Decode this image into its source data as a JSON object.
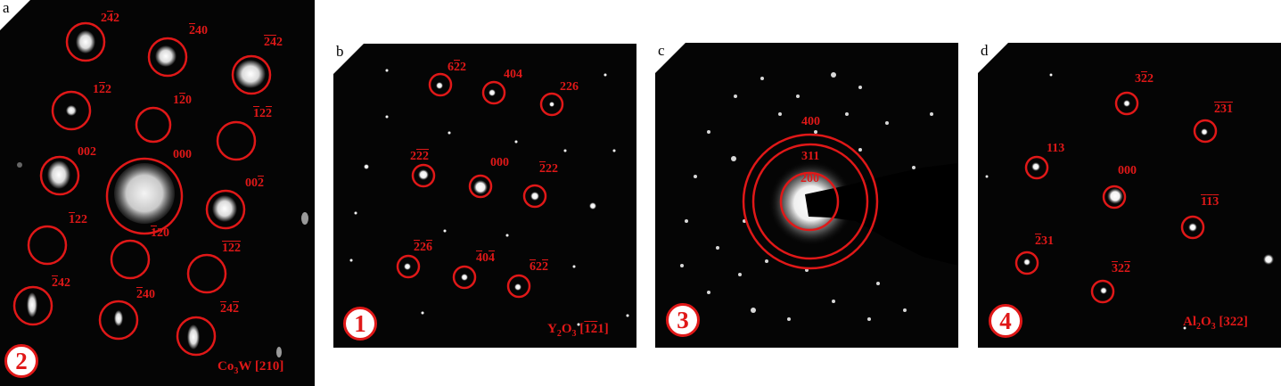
{
  "colors": {
    "marker": "#e01818",
    "background": "#050505",
    "badge_fill": "#ffffff"
  },
  "panels": {
    "a": {
      "letter": "a",
      "badge": "2",
      "caption_html": "Co<sub>3</sub>W [210]",
      "labels": [
        {
          "html": "2<span class=\"over\">4</span>2"
        },
        {
          "html": "<span class=\"over\">2</span>40"
        },
        {
          "html": "<span class=\"over\">24</span>2"
        },
        {
          "html": "1<span class=\"over\">2</span>2"
        },
        {
          "html": "1<span class=\"over\">2</span>0"
        },
        {
          "html": "<span class=\"over\">1</span>2<span class=\"over\">2</span>"
        },
        {
          "html": "002"
        },
        {
          "html": "000"
        },
        {
          "html": "00<span class=\"over\">2</span>"
        },
        {
          "html": "<span class=\"over\">1</span>22"
        },
        {
          "html": "<span class=\"over\">1</span>20"
        },
        {
          "html": "<span class=\"over\">12</span><span class=\"over\">2</span>"
        },
        {
          "html": "<span class=\"over\">2</span>42"
        },
        {
          "html": "<span class=\"over\">2</span>40"
        },
        {
          "html": "<span class=\"over\">2</span>4<span class=\"over\">2</span>"
        }
      ]
    },
    "b": {
      "letter": "b",
      "badge": "1",
      "caption_html": "Y<sub>2</sub>O<sub>3</sub> [<span class=\"over\">1</span><span class=\"over\">2</span>1]",
      "labels": [
        {
          "html": "6<span class=\"over\">2</span>2"
        },
        {
          "html": "404"
        },
        {
          "html": "226"
        },
        {
          "html": "2<span class=\"over\">2</span><span class=\"over\">2</span>"
        },
        {
          "html": "000"
        },
        {
          "html": "<span class=\"over\">2</span>22"
        },
        {
          "html": "<span class=\"over\">2</span>2<span class=\"over\">6</span>"
        },
        {
          "html": "<span class=\"over\">4</span>0<span class=\"over\">4</span>"
        },
        {
          "html": "<span class=\"over\">6</span>2<span class=\"over\">2</span>"
        }
      ]
    },
    "c": {
      "letter": "c",
      "badge": "3",
      "rings": [
        "400",
        "311",
        "200"
      ]
    },
    "d": {
      "letter": "d",
      "badge": "4",
      "caption_html": "Al<sub>2</sub>O<sub>3</sub> [322]",
      "labels": [
        {
          "html": "3<span class=\"over\">2</span>2"
        },
        {
          "html": "<span class=\"over\">2</span><span class=\"over\">3</span><span class=\"over\">1</span>"
        },
        {
          "html": "113"
        },
        {
          "html": "000"
        },
        {
          "html": "<span class=\"over\">1</span><span class=\"over\">1</span><span class=\"over\">3</span>"
        },
        {
          "html": "<span class=\"over\">2</span>31"
        },
        {
          "html": "<span class=\"over\">3</span>2<span class=\"over\">2</span>"
        }
      ]
    }
  }
}
